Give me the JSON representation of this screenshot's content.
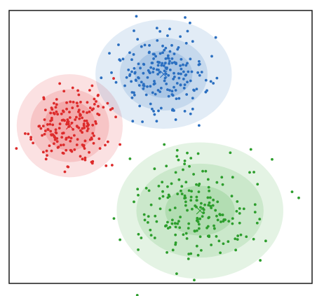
{
  "chart_data": {
    "type": "scatter",
    "title": "",
    "xlabel": "",
    "ylabel": "",
    "xlim": [
      0,
      10
    ],
    "ylim": [
      0,
      9
    ],
    "grid": false,
    "legend": "none",
    "axes_ticks": false,
    "series": [
      {
        "id": "red",
        "color": "#dd2b2b",
        "fill_color": "#e8474a",
        "center": [
          2.0,
          5.2
        ],
        "centroid_marker": "x",
        "confidence_ellipses": [
          {
            "rx": 0.85,
            "ry": 0.82,
            "opacity": 0.22
          },
          {
            "rx": 1.3,
            "ry": 1.2,
            "opacity": 0.18
          },
          {
            "rx": 1.75,
            "ry": 1.7,
            "opacity": 0.16
          }
        ],
        "points": []
      },
      {
        "id": "blue",
        "color": "#2b6fc0",
        "fill_color": "#4a86c8",
        "center": [
          5.1,
          6.9
        ],
        "centroid_marker": "x",
        "confidence_ellipses": [
          {
            "rx": 0.95,
            "ry": 0.78,
            "opacity": 0.22
          },
          {
            "rx": 1.45,
            "ry": 1.2,
            "opacity": 0.18
          },
          {
            "rx": 2.25,
            "ry": 1.8,
            "opacity": 0.16
          }
        ],
        "points": []
      },
      {
        "id": "green",
        "color": "#2d9e2d",
        "fill_color": "#5ab55a",
        "center": [
          6.3,
          2.4
        ],
        "centroid_marker": "x",
        "confidence_ellipses": [
          {
            "rx": 1.15,
            "ry": 0.82,
            "opacity": 0.22
          },
          {
            "rx": 2.1,
            "ry": 1.55,
            "opacity": 0.18
          },
          {
            "rx": 2.75,
            "ry": 2.25,
            "opacity": 0.16
          }
        ],
        "points": []
      }
    ]
  }
}
